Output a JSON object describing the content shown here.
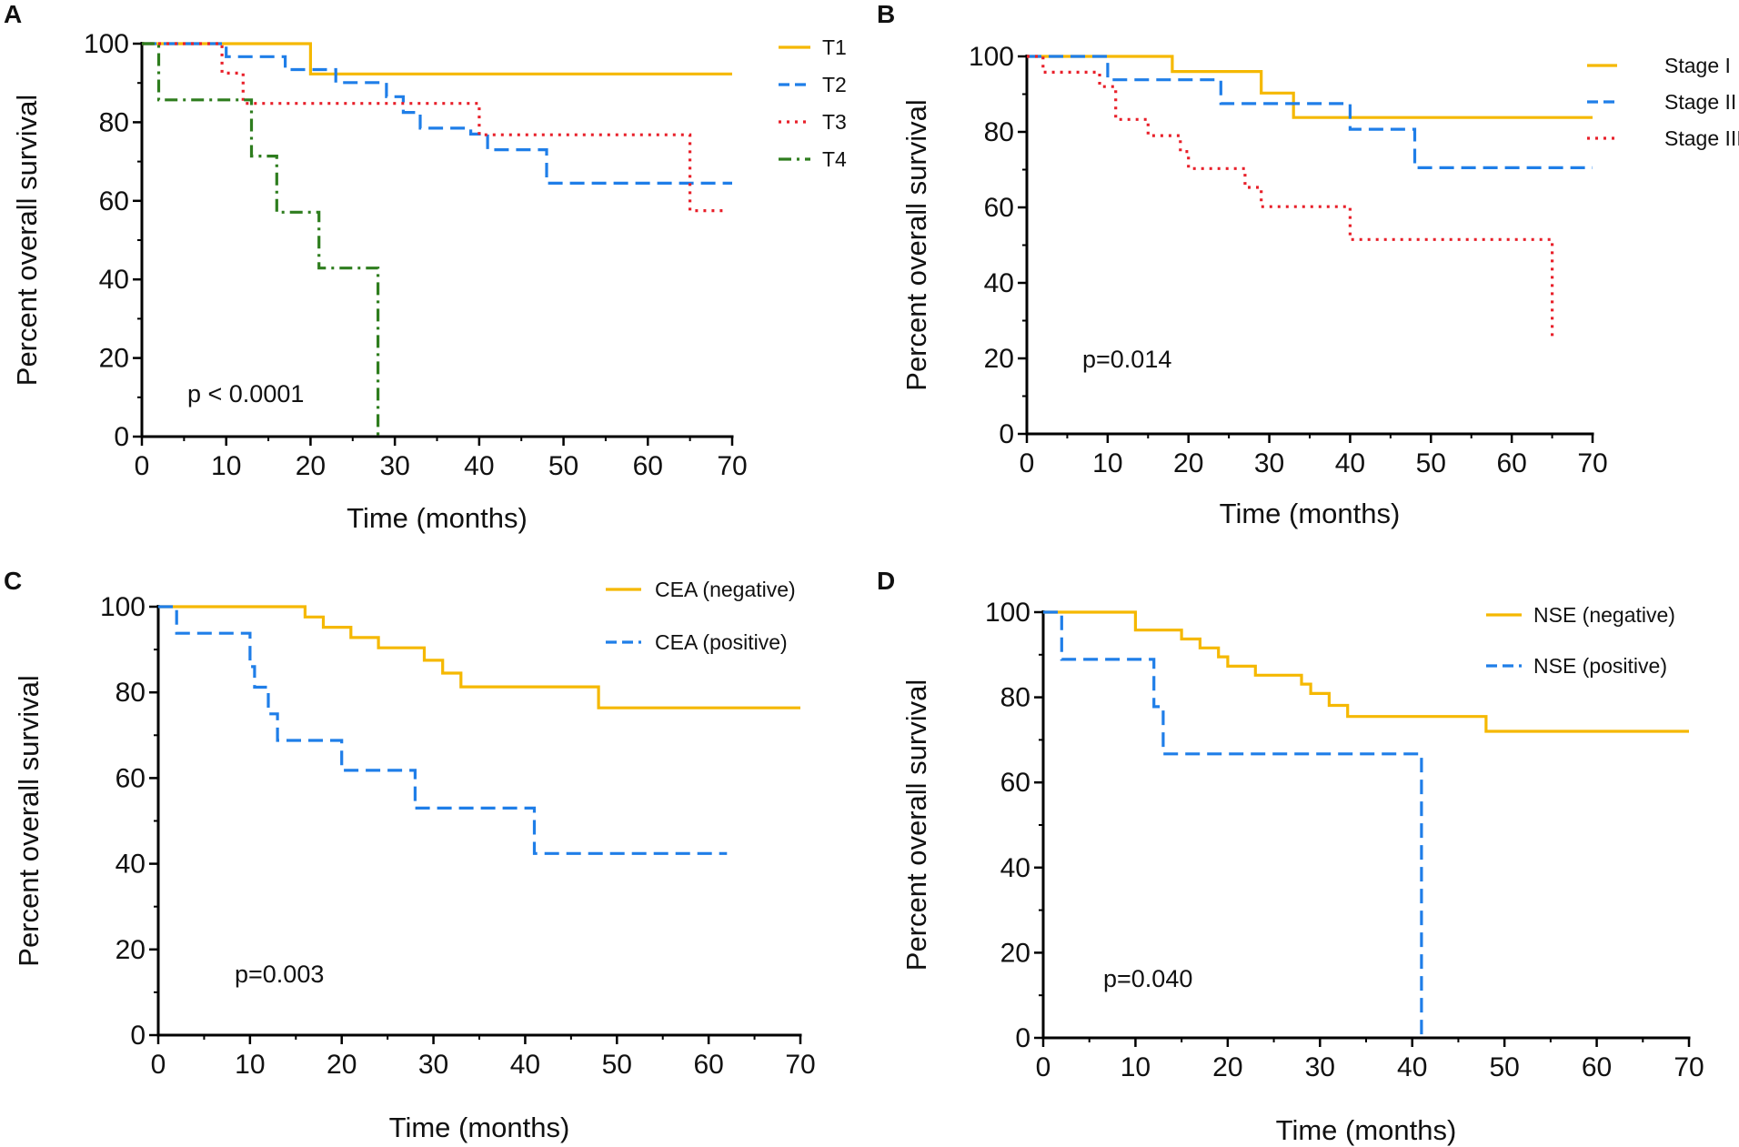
{
  "chart_data": [
    {
      "panel": "A",
      "type": "line",
      "step": true,
      "xlabel": "Time (months)",
      "ylabel": "Percent overall survival",
      "xlim": [
        0,
        70
      ],
      "ylim": [
        0,
        100
      ],
      "xticks": [
        "0",
        "10",
        "20",
        "30",
        "40",
        "50",
        "60",
        "70"
      ],
      "yticks": [
        "0",
        "20",
        "40",
        "60",
        "80",
        "100"
      ],
      "annotation": "p < 0.0001",
      "legend_position": "top-right",
      "series": [
        {
          "name": "T1",
          "color": "#f5b800",
          "style": "solid",
          "points": [
            [
              0,
              100
            ],
            [
              20,
              100
            ],
            [
              20,
              92.3
            ],
            [
              70,
              92.3
            ]
          ]
        },
        {
          "name": "T2",
          "color": "#1f7ee8",
          "style": "dashed",
          "points": [
            [
              0,
              100
            ],
            [
              10,
              100
            ],
            [
              10,
              96.7
            ],
            [
              17,
              96.7
            ],
            [
              17,
              93.4
            ],
            [
              23,
              93.4
            ],
            [
              23,
              90.1
            ],
            [
              29,
              90.1
            ],
            [
              29,
              86.5
            ],
            [
              31,
              86.5
            ],
            [
              31,
              82.5
            ],
            [
              33,
              82.5
            ],
            [
              33,
              78.5
            ],
            [
              39,
              78.5
            ],
            [
              39,
              77
            ],
            [
              41,
              77
            ],
            [
              41,
              73
            ],
            [
              48,
              73
            ],
            [
              48,
              64.5
            ],
            [
              70,
              64.5
            ]
          ]
        },
        {
          "name": "T3",
          "color": "#e8202a",
          "style": "dotted",
          "points": [
            [
              0,
              100
            ],
            [
              9.5,
              100
            ],
            [
              9.5,
              92.5
            ],
            [
              12,
              92.5
            ],
            [
              12,
              84.8
            ],
            [
              40,
              84.8
            ],
            [
              40,
              76.8
            ],
            [
              65,
              76.8
            ],
            [
              65,
              57.5
            ],
            [
              69,
              57.5
            ]
          ]
        },
        {
          "name": "T4",
          "color": "#2e7d1e",
          "style": "dashdot",
          "points": [
            [
              0,
              100
            ],
            [
              2,
              100
            ],
            [
              2,
              85.7
            ],
            [
              13,
              85.7
            ],
            [
              13,
              71.4
            ],
            [
              16,
              71.4
            ],
            [
              16,
              57.1
            ],
            [
              21,
              57.1
            ],
            [
              21,
              42.9
            ],
            [
              28,
              42.9
            ],
            [
              28,
              0
            ]
          ]
        }
      ]
    },
    {
      "panel": "B",
      "type": "line",
      "step": true,
      "xlabel": "Time (months)",
      "ylabel": "Percent overall survival",
      "xlim": [
        0,
        70
      ],
      "ylim": [
        0,
        100
      ],
      "xticks": [
        "0",
        "10",
        "20",
        "30",
        "40",
        "50",
        "60",
        "70"
      ],
      "yticks": [
        "0",
        "20",
        "40",
        "60",
        "80",
        "100"
      ],
      "annotation": "p=0.014",
      "legend_position": "top-right",
      "series": [
        {
          "name": "Stage I",
          "color": "#f5b800",
          "style": "solid",
          "points": [
            [
              0,
              100
            ],
            [
              18,
              100
            ],
            [
              18,
              96
            ],
            [
              29,
              96
            ],
            [
              29,
              90.3
            ],
            [
              33,
              90.3
            ],
            [
              33,
              83.8
            ],
            [
              70,
              83.8
            ]
          ]
        },
        {
          "name": "Stage II",
          "color": "#1f7ee8",
          "style": "dashed",
          "points": [
            [
              0,
              100
            ],
            [
              10,
              100
            ],
            [
              10,
              93.8
            ],
            [
              24,
              93.8
            ],
            [
              24,
              87.5
            ],
            [
              40,
              87.5
            ],
            [
              40,
              80.7
            ],
            [
              48,
              80.7
            ],
            [
              48,
              70.5
            ],
            [
              70,
              70.5
            ]
          ]
        },
        {
          "name": "Stage III",
          "color": "#e8202a",
          "style": "dotted",
          "points": [
            [
              0,
              100
            ],
            [
              2,
              100
            ],
            [
              2,
              95.8
            ],
            [
              9,
              95.8
            ],
            [
              9,
              92
            ],
            [
              11,
              92
            ],
            [
              11,
              83.3
            ],
            [
              15,
              83.3
            ],
            [
              15,
              79
            ],
            [
              19,
              79
            ],
            [
              19,
              74.8
            ],
            [
              20,
              74.8
            ],
            [
              20,
              70.3
            ],
            [
              27,
              70.3
            ],
            [
              27,
              65.3
            ],
            [
              29,
              65.3
            ],
            [
              29,
              60.2
            ],
            [
              40,
              60.2
            ],
            [
              40,
              51.5
            ],
            [
              65,
              51.5
            ],
            [
              65,
              25.8
            ]
          ]
        }
      ]
    },
    {
      "panel": "C",
      "type": "line",
      "step": true,
      "xlabel": "Time (months)",
      "ylabel": "Percent overall survival",
      "xlim": [
        0,
        70
      ],
      "ylim": [
        0,
        100
      ],
      "xticks": [
        "0",
        "10",
        "20",
        "30",
        "40",
        "50",
        "60",
        "70"
      ],
      "yticks": [
        "0",
        "20",
        "40",
        "60",
        "80",
        "100"
      ],
      "annotation": "p=0.003",
      "legend_position": "top-right",
      "series": [
        {
          "name": "CEA (negative)",
          "color": "#f5b800",
          "style": "solid",
          "points": [
            [
              0,
              100
            ],
            [
              16,
              100
            ],
            [
              16,
              97.6
            ],
            [
              18,
              97.6
            ],
            [
              18,
              95.2
            ],
            [
              21,
              95.2
            ],
            [
              21,
              92.8
            ],
            [
              24,
              92.8
            ],
            [
              24,
              90.4
            ],
            [
              29,
              90.4
            ],
            [
              29,
              87.5
            ],
            [
              31,
              87.5
            ],
            [
              31,
              84.5
            ],
            [
              33,
              84.5
            ],
            [
              33,
              81.3
            ],
            [
              48,
              81.3
            ],
            [
              48,
              76.4
            ],
            [
              70,
              76.4
            ]
          ]
        },
        {
          "name": "CEA (positive)",
          "color": "#1f7ee8",
          "style": "dashed",
          "points": [
            [
              0,
              100
            ],
            [
              2,
              100
            ],
            [
              2,
              93.8
            ],
            [
              10,
              93.8
            ],
            [
              10,
              86
            ],
            [
              10.5,
              86
            ],
            [
              10.5,
              81.2
            ],
            [
              12,
              81.2
            ],
            [
              12,
              75
            ],
            [
              13,
              75
            ],
            [
              13,
              68.8
            ],
            [
              20,
              68.8
            ],
            [
              20,
              61.8
            ],
            [
              28,
              61.8
            ],
            [
              28,
              53
            ],
            [
              41,
              53
            ],
            [
              41,
              42.4
            ],
            [
              62,
              42.4
            ]
          ]
        }
      ]
    },
    {
      "panel": "D",
      "type": "line",
      "step": true,
      "xlabel": "Time (months)",
      "ylabel": "Percent overall survival",
      "xlim": [
        0,
        70
      ],
      "ylim": [
        0,
        100
      ],
      "xticks": [
        "0",
        "10",
        "20",
        "30",
        "40",
        "50",
        "60",
        "70"
      ],
      "yticks": [
        "0",
        "20",
        "40",
        "60",
        "80",
        "100"
      ],
      "annotation": "p=0.040",
      "legend_position": "top-right",
      "series": [
        {
          "name": "NSE (negative)",
          "color": "#f5b800",
          "style": "solid",
          "points": [
            [
              0,
              100
            ],
            [
              10,
              100
            ],
            [
              10,
              95.8
            ],
            [
              15,
              95.8
            ],
            [
              15,
              93.7
            ],
            [
              17,
              93.7
            ],
            [
              17,
              91.6
            ],
            [
              19,
              91.6
            ],
            [
              19,
              89.5
            ],
            [
              20,
              89.5
            ],
            [
              20,
              87.3
            ],
            [
              23,
              87.3
            ],
            [
              23,
              85.2
            ],
            [
              28,
              85.2
            ],
            [
              28,
              83.1
            ],
            [
              29,
              83.1
            ],
            [
              29,
              80.9
            ],
            [
              31,
              80.9
            ],
            [
              31,
              78.1
            ],
            [
              33,
              78.1
            ],
            [
              33,
              75.5
            ],
            [
              48,
              75.5
            ],
            [
              48,
              72
            ],
            [
              70,
              72
            ]
          ]
        },
        {
          "name": "NSE (positive)",
          "color": "#1f7ee8",
          "style": "dashed",
          "points": [
            [
              0,
              100
            ],
            [
              2,
              100
            ],
            [
              2,
              88.9
            ],
            [
              12,
              88.9
            ],
            [
              12,
              77.8
            ],
            [
              13,
              77.8
            ],
            [
              13,
              66.7
            ],
            [
              41,
              66.7
            ],
            [
              41,
              0
            ]
          ]
        }
      ]
    }
  ]
}
